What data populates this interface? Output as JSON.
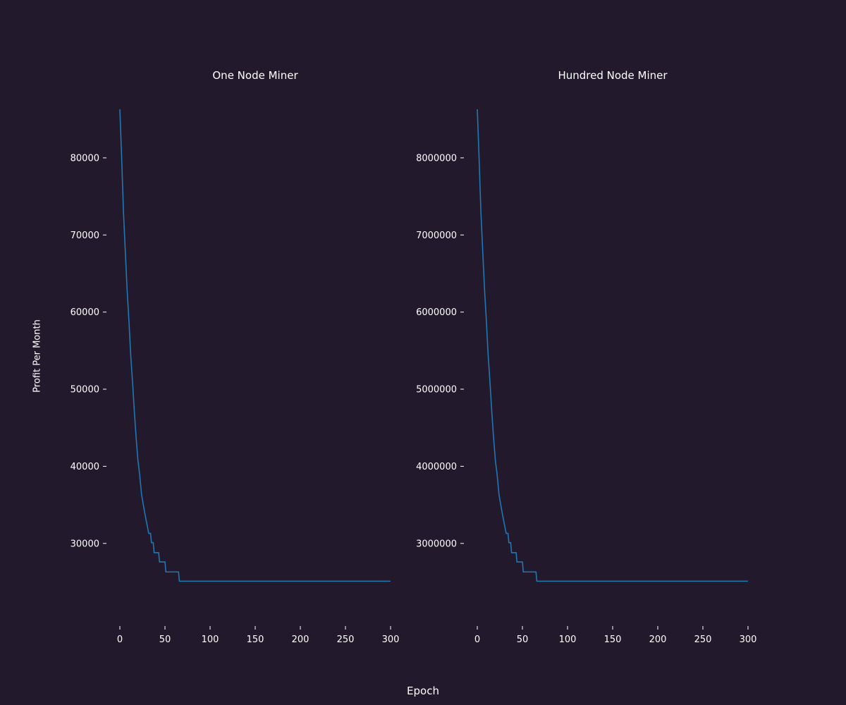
{
  "figure": {
    "xlabel": "Epoch",
    "ylabel": "Profit Per Month",
    "colors": {
      "background": "#221a2c",
      "line": "#1f77b4",
      "text": "#ffffff"
    }
  },
  "chart_data": [
    {
      "type": "line",
      "title": "One Node Miner",
      "xlabel": "Epoch",
      "ylabel": "Profit Per Month",
      "xlim": [
        0,
        300
      ],
      "ylim": [
        22300,
        86300
      ],
      "xticks": [
        0,
        50,
        100,
        150,
        200,
        250,
        300
      ],
      "yticks": [
        30000,
        40000,
        50000,
        60000,
        70000,
        80000
      ],
      "grid": false,
      "series": [
        {
          "points": [
            [
              0,
              86300
            ],
            [
              2,
              80000
            ],
            [
              4,
              73000
            ],
            [
              6,
              68000
            ],
            [
              8,
              63000
            ],
            [
              10,
              59000
            ],
            [
              12,
              54500
            ],
            [
              14,
              51000
            ],
            [
              16,
              47200
            ],
            [
              18,
              43800
            ],
            [
              20,
              40800
            ],
            [
              22,
              38900
            ],
            [
              24,
              36400
            ],
            [
              26,
              35000
            ],
            [
              28,
              33700
            ],
            [
              30,
              32500
            ],
            [
              32,
              31300
            ],
            [
              34,
              31300
            ],
            [
              35,
              30100
            ],
            [
              37,
              30100
            ],
            [
              38,
              28800
            ],
            [
              43,
              28800
            ],
            [
              44,
              27600
            ],
            [
              50,
              27600
            ],
            [
              51,
              26300
            ],
            [
              65,
              26300
            ],
            [
              66,
              25100
            ],
            [
              300,
              25100
            ]
          ]
        }
      ]
    },
    {
      "type": "line",
      "title": "Hundred Node Miner",
      "xlabel": "Epoch",
      "ylabel": "Profit Per Month",
      "xlim": [
        0,
        300
      ],
      "ylim": [
        2230000,
        8630000
      ],
      "xticks": [
        0,
        50,
        100,
        150,
        200,
        250,
        300
      ],
      "yticks": [
        3000000,
        4000000,
        5000000,
        6000000,
        7000000,
        8000000
      ],
      "grid": false,
      "series": [
        {
          "points": [
            [
              0,
              8630000
            ],
            [
              2,
              8000000
            ],
            [
              4,
              7300000
            ],
            [
              6,
              6800000
            ],
            [
              8,
              6300000
            ],
            [
              10,
              5900000
            ],
            [
              12,
              5450000
            ],
            [
              14,
              5100000
            ],
            [
              16,
              4720000
            ],
            [
              18,
              4380000
            ],
            [
              20,
              4080000
            ],
            [
              22,
              3890000
            ],
            [
              24,
              3640000
            ],
            [
              26,
              3500000
            ],
            [
              28,
              3370000
            ],
            [
              30,
              3250000
            ],
            [
              32,
              3130000
            ],
            [
              34,
              3130000
            ],
            [
              35,
              3010000
            ],
            [
              37,
              3010000
            ],
            [
              38,
              2880000
            ],
            [
              43,
              2880000
            ],
            [
              44,
              2760000
            ],
            [
              50,
              2760000
            ],
            [
              51,
              2630000
            ],
            [
              65,
              2630000
            ],
            [
              66,
              2510000
            ],
            [
              300,
              2510000
            ]
          ]
        }
      ]
    }
  ]
}
